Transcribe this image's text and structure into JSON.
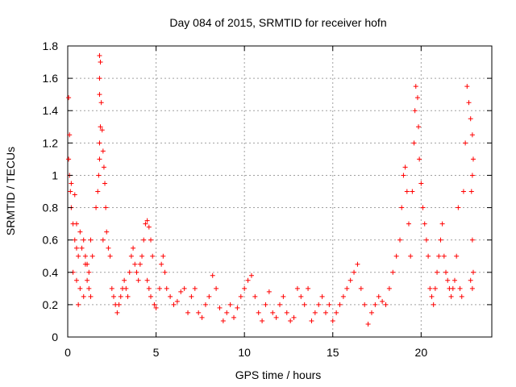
{
  "chart_data": {
    "type": "scatter",
    "title": "Day 084 of 2015, SRMTID for receiver hofn",
    "xlabel": "GPS time / hours",
    "ylabel": "SRMTID / TECUs",
    "xlim": [
      0,
      24
    ],
    "ylim": [
      0,
      1.8
    ],
    "xticks": [
      0,
      5,
      10,
      15,
      20
    ],
    "xtick_labels": [
      "0",
      "5",
      "10",
      "15",
      "20"
    ],
    "yticks": [
      0,
      0.2,
      0.4,
      0.6,
      0.8,
      1,
      1.2,
      1.4,
      1.6,
      1.8
    ],
    "ytick_labels": [
      "0",
      "0.2",
      "0.4",
      "0.6",
      "0.8",
      "1",
      "1.2",
      "1.4",
      "1.6",
      "1.8"
    ],
    "grid": true,
    "marker": "+",
    "series": [
      {
        "name": "SRMTID",
        "color": "#ff0000",
        "points": [
          [
            0.05,
            1.48
          ],
          [
            0.1,
            1.25
          ],
          [
            0.05,
            1.1
          ],
          [
            0.1,
            1.0
          ],
          [
            0.15,
            0.9
          ],
          [
            0.2,
            0.8
          ],
          [
            0.3,
            0.7
          ],
          [
            0.4,
            0.6
          ],
          [
            0.5,
            0.55
          ],
          [
            0.6,
            0.5
          ],
          [
            0.3,
            0.4
          ],
          [
            0.5,
            0.35
          ],
          [
            0.7,
            0.3
          ],
          [
            0.6,
            0.2
          ],
          [
            0.9,
            0.25
          ],
          [
            1.0,
            0.45
          ],
          [
            1.1,
            0.35
          ],
          [
            1.2,
            0.3
          ],
          [
            1.3,
            0.25
          ],
          [
            1.4,
            0.5
          ],
          [
            0.2,
            0.95
          ],
          [
            0.4,
            0.88
          ],
          [
            0.5,
            0.7
          ],
          [
            0.7,
            0.65
          ],
          [
            0.8,
            0.55
          ],
          [
            0.9,
            0.6
          ],
          [
            1.0,
            0.5
          ],
          [
            1.1,
            0.45
          ],
          [
            1.2,
            0.4
          ],
          [
            1.3,
            0.6
          ],
          [
            1.6,
            0.8
          ],
          [
            1.7,
            0.9
          ],
          [
            1.75,
            1.0
          ],
          [
            1.8,
            1.1
          ],
          [
            1.8,
            1.2
          ],
          [
            1.85,
            1.3
          ],
          [
            1.8,
            1.5
          ],
          [
            1.8,
            1.6
          ],
          [
            1.8,
            1.74
          ],
          [
            1.85,
            1.7
          ],
          [
            1.9,
            1.45
          ],
          [
            1.95,
            1.28
          ],
          [
            2.0,
            1.15
          ],
          [
            2.05,
            1.05
          ],
          [
            2.1,
            0.95
          ],
          [
            2.15,
            0.8
          ],
          [
            2.2,
            0.65
          ],
          [
            2.3,
            0.55
          ],
          [
            2.4,
            0.5
          ],
          [
            2.0,
            0.6
          ],
          [
            2.5,
            0.3
          ],
          [
            2.6,
            0.25
          ],
          [
            2.7,
            0.2
          ],
          [
            2.8,
            0.15
          ],
          [
            2.9,
            0.2
          ],
          [
            3.0,
            0.25
          ],
          [
            3.1,
            0.3
          ],
          [
            3.2,
            0.35
          ],
          [
            3.3,
            0.3
          ],
          [
            3.4,
            0.25
          ],
          [
            3.5,
            0.4
          ],
          [
            3.6,
            0.5
          ],
          [
            3.7,
            0.55
          ],
          [
            3.8,
            0.45
          ],
          [
            3.9,
            0.4
          ],
          [
            4.0,
            0.35
          ],
          [
            4.1,
            0.45
          ],
          [
            4.2,
            0.5
          ],
          [
            4.3,
            0.6
          ],
          [
            4.4,
            0.7
          ],
          [
            4.5,
            0.72
          ],
          [
            4.6,
            0.68
          ],
          [
            4.7,
            0.6
          ],
          [
            4.8,
            0.5
          ],
          [
            4.5,
            0.35
          ],
          [
            4.6,
            0.3
          ],
          [
            4.7,
            0.25
          ],
          [
            4.9,
            0.2
          ],
          [
            5.0,
            0.18
          ],
          [
            5.2,
            0.3
          ],
          [
            5.3,
            0.45
          ],
          [
            5.4,
            0.5
          ],
          [
            5.5,
            0.4
          ],
          [
            5.6,
            0.3
          ],
          [
            5.8,
            0.25
          ],
          [
            6.0,
            0.2
          ],
          [
            6.2,
            0.22
          ],
          [
            6.4,
            0.28
          ],
          [
            6.6,
            0.3
          ],
          [
            6.8,
            0.15
          ],
          [
            7.0,
            0.25
          ],
          [
            7.2,
            0.3
          ],
          [
            7.4,
            0.15
          ],
          [
            7.6,
            0.12
          ],
          [
            7.8,
            0.2
          ],
          [
            8.0,
            0.25
          ],
          [
            8.2,
            0.38
          ],
          [
            8.4,
            0.3
          ],
          [
            8.6,
            0.18
          ],
          [
            8.8,
            0.1
          ],
          [
            9.0,
            0.15
          ],
          [
            9.2,
            0.2
          ],
          [
            9.4,
            0.12
          ],
          [
            9.6,
            0.18
          ],
          [
            9.8,
            0.25
          ],
          [
            10.0,
            0.3
          ],
          [
            10.2,
            0.35
          ],
          [
            10.4,
            0.38
          ],
          [
            10.6,
            0.25
          ],
          [
            10.8,
            0.15
          ],
          [
            11.0,
            0.1
          ],
          [
            11.2,
            0.2
          ],
          [
            11.4,
            0.28
          ],
          [
            11.6,
            0.15
          ],
          [
            11.8,
            0.12
          ],
          [
            12.0,
            0.2
          ],
          [
            12.2,
            0.25
          ],
          [
            12.4,
            0.15
          ],
          [
            12.6,
            0.1
          ],
          [
            12.8,
            0.12
          ],
          [
            13.0,
            0.3
          ],
          [
            13.2,
            0.25
          ],
          [
            13.4,
            0.2
          ],
          [
            13.6,
            0.3
          ],
          [
            13.8,
            0.1
          ],
          [
            14.0,
            0.15
          ],
          [
            14.2,
            0.2
          ],
          [
            14.4,
            0.25
          ],
          [
            14.6,
            0.15
          ],
          [
            14.8,
            0.2
          ],
          [
            15.0,
            0.1
          ],
          [
            15.2,
            0.15
          ],
          [
            15.4,
            0.2
          ],
          [
            15.6,
            0.25
          ],
          [
            15.8,
            0.3
          ],
          [
            16.0,
            0.35
          ],
          [
            16.2,
            0.4
          ],
          [
            16.4,
            0.45
          ],
          [
            16.6,
            0.3
          ],
          [
            16.8,
            0.2
          ],
          [
            17.0,
            0.08
          ],
          [
            17.2,
            0.15
          ],
          [
            17.4,
            0.2
          ],
          [
            17.6,
            0.25
          ],
          [
            17.8,
            0.22
          ],
          [
            18.0,
            0.2
          ],
          [
            18.2,
            0.3
          ],
          [
            18.4,
            0.4
          ],
          [
            18.6,
            0.5
          ],
          [
            18.8,
            0.6
          ],
          [
            18.9,
            0.8
          ],
          [
            19.0,
            1.0
          ],
          [
            19.1,
            1.05
          ],
          [
            19.2,
            0.9
          ],
          [
            19.3,
            0.7
          ],
          [
            19.4,
            0.5
          ],
          [
            19.5,
            0.9
          ],
          [
            19.6,
            1.2
          ],
          [
            19.65,
            1.4
          ],
          [
            19.7,
            1.55
          ],
          [
            19.8,
            1.48
          ],
          [
            19.85,
            1.3
          ],
          [
            19.9,
            1.1
          ],
          [
            20.0,
            0.95
          ],
          [
            20.1,
            0.8
          ],
          [
            20.2,
            0.7
          ],
          [
            20.3,
            0.6
          ],
          [
            20.4,
            0.5
          ],
          [
            20.5,
            0.3
          ],
          [
            20.6,
            0.25
          ],
          [
            20.7,
            0.2
          ],
          [
            20.8,
            0.3
          ],
          [
            20.9,
            0.4
          ],
          [
            21.0,
            0.5
          ],
          [
            21.1,
            0.6
          ],
          [
            21.2,
            0.7
          ],
          [
            21.3,
            0.5
          ],
          [
            21.4,
            0.4
          ],
          [
            21.5,
            0.35
          ],
          [
            21.6,
            0.3
          ],
          [
            21.7,
            0.25
          ],
          [
            21.8,
            0.3
          ],
          [
            21.9,
            0.35
          ],
          [
            22.0,
            0.5
          ],
          [
            22.1,
            0.8
          ],
          [
            22.2,
            0.3
          ],
          [
            22.3,
            0.25
          ],
          [
            22.4,
            0.9
          ],
          [
            22.5,
            1.2
          ],
          [
            22.6,
            1.55
          ],
          [
            22.7,
            1.45
          ],
          [
            22.8,
            1.35
          ],
          [
            22.9,
            1.25
          ],
          [
            22.95,
            1.1
          ],
          [
            22.9,
            1.0
          ],
          [
            22.85,
            0.9
          ],
          [
            22.9,
            0.6
          ],
          [
            22.95,
            0.4
          ],
          [
            22.9,
            0.3
          ],
          [
            22.8,
            0.35
          ]
        ]
      }
    ]
  }
}
